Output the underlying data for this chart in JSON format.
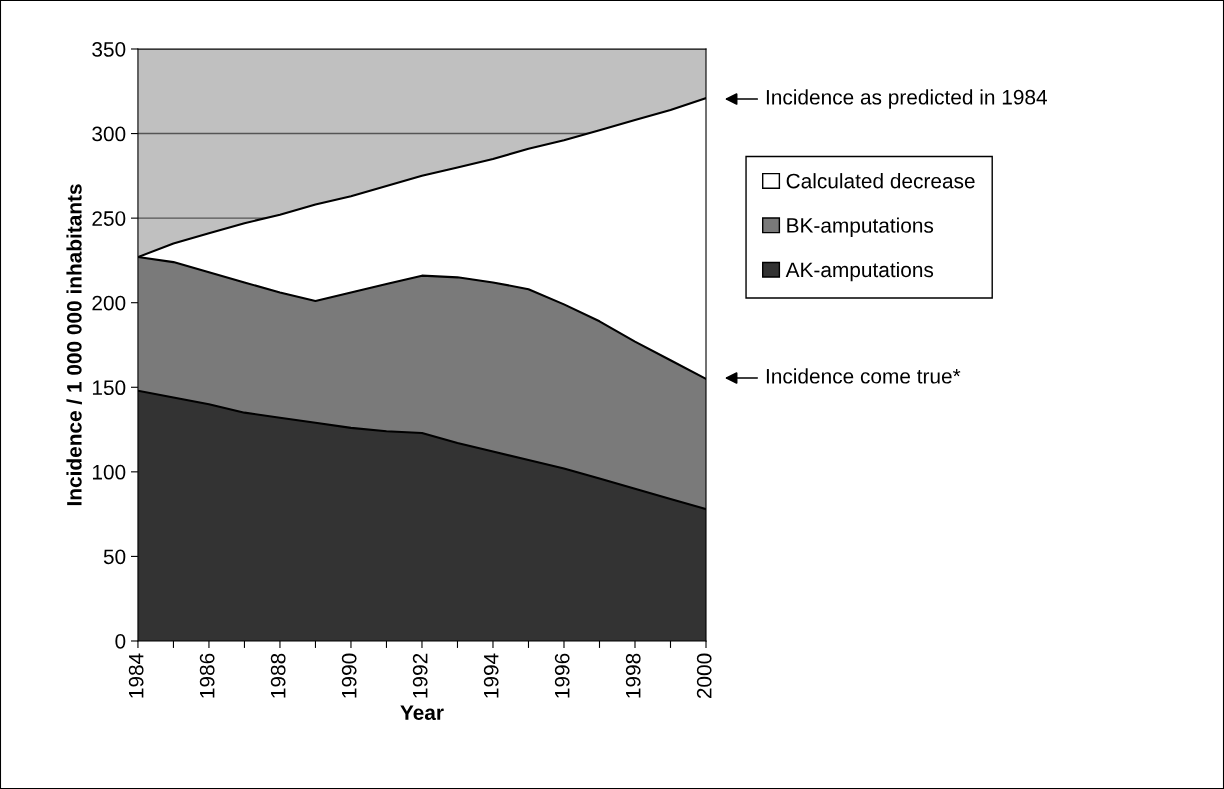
{
  "chart_data": {
    "type": "area",
    "stacked": true,
    "xlabel": "Year",
    "ylabel": "Incidence / 1 000 000 inhabitants",
    "x": [
      1984,
      1985,
      1986,
      1987,
      1988,
      1989,
      1990,
      1991,
      1992,
      1993,
      1994,
      1995,
      1996,
      1997,
      1998,
      1999,
      2000
    ],
    "series": [
      {
        "name": "AK-amputations",
        "color": "#333333",
        "values": [
          148,
          144,
          140,
          135,
          132,
          129,
          126,
          124,
          123,
          117,
          112,
          107,
          102,
          96,
          90,
          84,
          78
        ]
      },
      {
        "name": "BK-amputations",
        "color": "#7a7a7a",
        "values": [
          79,
          80,
          78,
          77,
          74,
          72,
          80,
          87,
          93,
          98,
          100,
          101,
          97,
          93,
          87,
          82,
          77
        ]
      },
      {
        "name": "Calculated decrease",
        "color": "#ffffff",
        "values": [
          0,
          11,
          23,
          35,
          46,
          57,
          57,
          58,
          59,
          65,
          73,
          83,
          97,
          113,
          131,
          148,
          166
        ]
      }
    ],
    "xlim": [
      1984,
      2000
    ],
    "xticks": [
      1984,
      {
        "value": 1985,
        "label": null
      },
      1986,
      {
        "value": 1987,
        "label": null
      },
      1988,
      {
        "value": 1989,
        "label": null
      },
      1990,
      {
        "value": 1991,
        "label": null
      },
      1992,
      {
        "value": 1993,
        "label": null
      },
      1994,
      {
        "value": 1995,
        "label": null
      },
      1996,
      {
        "value": 1997,
        "label": null
      },
      1998,
      {
        "value": 1999,
        "label": null
      },
      2000
    ],
    "ylim": [
      0,
      350
    ],
    "yticks": [
      0,
      50,
      100,
      150,
      200,
      250,
      300,
      350
    ],
    "grid": "y",
    "legend": "right",
    "annotations": [
      "Incidence as predicted in 1984",
      "Incidence come true*"
    ]
  }
}
